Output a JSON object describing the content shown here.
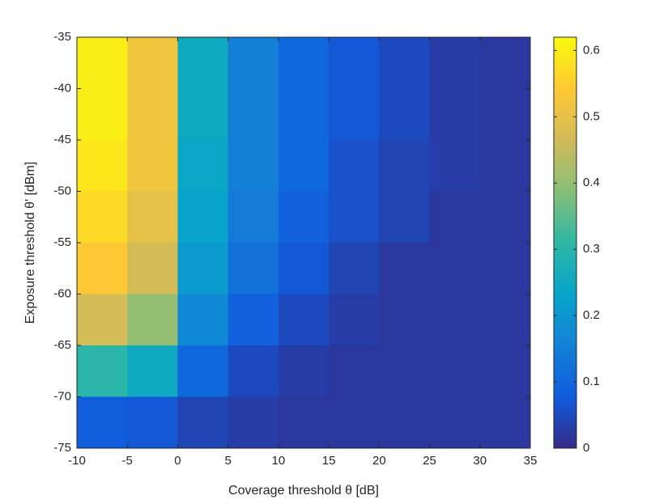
{
  "chart_data": {
    "type": "heatmap",
    "xlabel": "Coverage threshold θ [dB]",
    "ylabel": "Exposure threshold θ' [dBm]",
    "x": [
      -7.5,
      -2.5,
      2.5,
      7.5,
      12.5,
      17.5,
      22.5,
      27.5,
      32.5
    ],
    "y": [
      -37.5,
      -42.5,
      -47.5,
      -52.5,
      -57.5,
      -62.5,
      -67.5,
      -72.5
    ],
    "z": [
      [
        0.6,
        0.52,
        0.25,
        0.15,
        0.1,
        0.07,
        0.05,
        0.03,
        0.02
      ],
      [
        0.6,
        0.52,
        0.25,
        0.15,
        0.1,
        0.07,
        0.05,
        0.03,
        0.02
      ],
      [
        0.59,
        0.52,
        0.24,
        0.15,
        0.1,
        0.06,
        0.04,
        0.03,
        0.02
      ],
      [
        0.57,
        0.5,
        0.23,
        0.14,
        0.09,
        0.06,
        0.04,
        0.02,
        0.02
      ],
      [
        0.54,
        0.47,
        0.21,
        0.12,
        0.07,
        0.04,
        0.02,
        0.02,
        0.02
      ],
      [
        0.47,
        0.4,
        0.17,
        0.09,
        0.05,
        0.03,
        0.02,
        0.02,
        0.02
      ],
      [
        0.3,
        0.25,
        0.1,
        0.05,
        0.03,
        0.02,
        0.02,
        0.02,
        0.02
      ],
      [
        0.08,
        0.07,
        0.04,
        0.03,
        0.02,
        0.02,
        0.02,
        0.02,
        0.02
      ]
    ],
    "xlim": [
      -10,
      35
    ],
    "xticks": [
      -10,
      -5,
      0,
      5,
      10,
      15,
      20,
      25,
      30,
      35
    ],
    "ylim": [
      -75,
      -35
    ],
    "yticks": [
      -75,
      -70,
      -65,
      -60,
      -55,
      -50,
      -45,
      -40,
      -35
    ],
    "clim": [
      0,
      0.62
    ],
    "cticks": [
      0,
      0.1,
      0.2,
      0.3,
      0.4,
      0.5,
      0.6
    ],
    "colormap": [
      "#352a87",
      "#0f5cdd",
      "#1481d6",
      "#06a4ca",
      "#2eb7a4",
      "#87bf77",
      "#d1bb59",
      "#fec832",
      "#f9fb0e"
    ]
  }
}
